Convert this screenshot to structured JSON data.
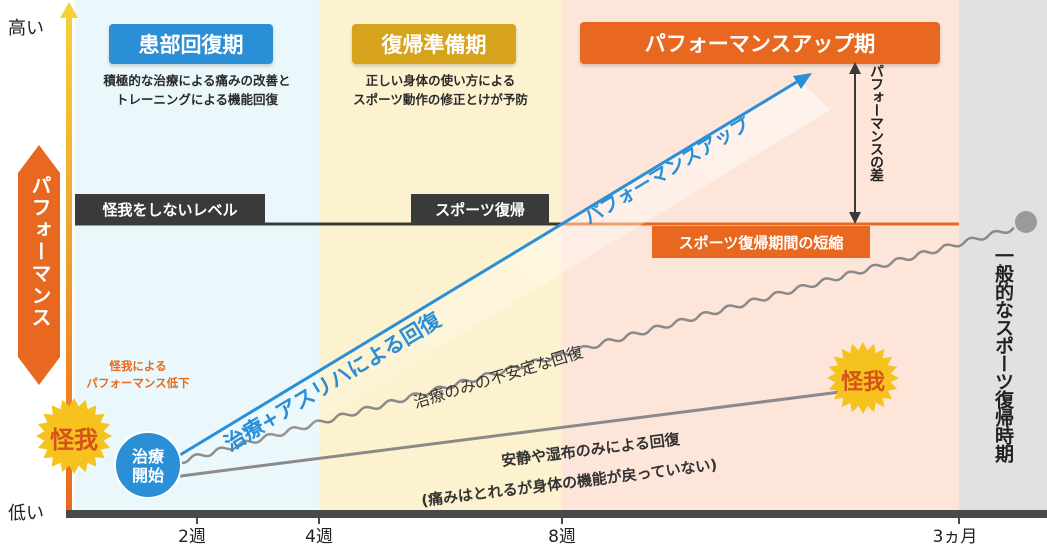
{
  "yaxis": {
    "high": "高い",
    "low": "低い",
    "label": "パフォーマンス"
  },
  "xaxis": {
    "ticks": [
      "2週",
      "4週",
      "8週",
      "3ヵ月"
    ]
  },
  "phases": [
    {
      "title": "患部回復期",
      "desc": [
        "積極的な治療による痛みの改善と",
        "トレーニングによる機能回復"
      ],
      "color": "#2a8fd6"
    },
    {
      "title": "復帰準備期",
      "desc": [
        "正しい身体の使い方による",
        "スポーツ動作の修正とけが予防"
      ],
      "color": "#d7a21c"
    },
    {
      "title": "パフォーマンスアップ期",
      "color": "#e8681f"
    }
  ],
  "labels": {
    "no_injury_level": "怪我をしないレベル",
    "sports_return": "スポーツ復帰",
    "shortened": "スポーツ復帰期間の短縮",
    "performance_diff": "パフォーマンスの差",
    "general_return": "一般的なスポーツ復帰時期",
    "injury_drop": [
      "怪我による",
      "パフォーマンス低下"
    ],
    "injury": "怪我",
    "treatment_start": [
      "治療",
      "開始"
    ]
  },
  "lines": {
    "asuriha": "治療+アスリハによる回復",
    "performance_up": "パフォーマンスアップ",
    "treatment_only": "治療のみの不安定な回復",
    "rest_only": [
      "安静や湿布のみによる回復",
      "(痛みはとれるが身体の機能が戻っていない)"
    ]
  },
  "colors": {
    "blue_line": "#2a8fd6",
    "orange": "#e8681f",
    "dark": "#3a3a3a",
    "gray_line": "#8a8a8a"
  }
}
